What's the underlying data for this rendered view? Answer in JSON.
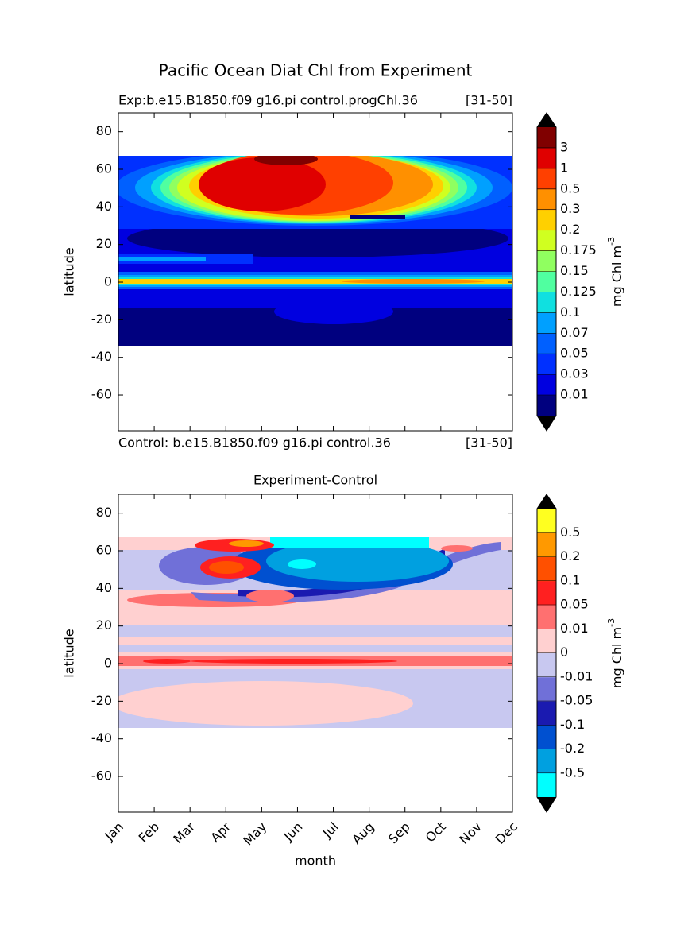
{
  "chart_data": [
    {
      "type": "contour",
      "title": "Pacific Ocean Diat Chl from Experiment",
      "subtitle": "Exp:b.e15.B1850.f09 g16.pi control.progChl.36",
      "subtitle_right": "[31-50]",
      "footer": "Control: b.e15.B1850.f09 g16.pi control.36",
      "footer_right": "[31-50]",
      "y_label": "latitude",
      "ylim": [
        -79,
        90
      ],
      "yticks": [
        -60,
        -40,
        -20,
        0,
        20,
        40,
        60,
        80
      ],
      "colorbar": {
        "label": "mg Chl m",
        "label_sup": "-3",
        "levels": [
          0.01,
          0.03,
          0.05,
          0.07,
          0.1,
          0.125,
          0.15,
          0.175,
          0.2,
          0.3,
          0.5,
          1,
          3
        ],
        "colors": [
          "#00007f",
          "#0000e0",
          "#0030ff",
          "#0060ff",
          "#00a0ff",
          "#10e0e0",
          "#50ffa0",
          "#90ff60",
          "#d0ff20",
          "#ffd000",
          "#ff9000",
          "#ff4000",
          "#e00000",
          "#800000"
        ],
        "extend_color": "#000000"
      }
    },
    {
      "type": "contour",
      "title": "Experiment-Control",
      "x_label": "month",
      "y_label": "latitude",
      "categories": [
        "Jan",
        "Feb",
        "Mar",
        "Apr",
        "May",
        "Jun",
        "Jul",
        "Aug",
        "Sep",
        "Oct",
        "Nov",
        "Dec"
      ],
      "ylim": [
        -79,
        90
      ],
      "yticks": [
        -60,
        -40,
        -20,
        0,
        20,
        40,
        60,
        80
      ],
      "colorbar": {
        "label": "mg Chl m",
        "label_sup": "-3",
        "levels": [
          -0.5,
          -0.2,
          -0.1,
          -0.05,
          -0.01,
          0,
          0.01,
          0.05,
          0.1,
          0.2,
          0.5
        ],
        "colors": [
          "#00ffff",
          "#00a0e0",
          "#0050d0",
          "#1a1ab0",
          "#7070d8",
          "#c8c8f0",
          "#ffd0d0",
          "#ff7070",
          "#ff2020",
          "#ff5000",
          "#ff9900",
          "#ffff20"
        ],
        "extend_color": "#000000"
      }
    }
  ]
}
